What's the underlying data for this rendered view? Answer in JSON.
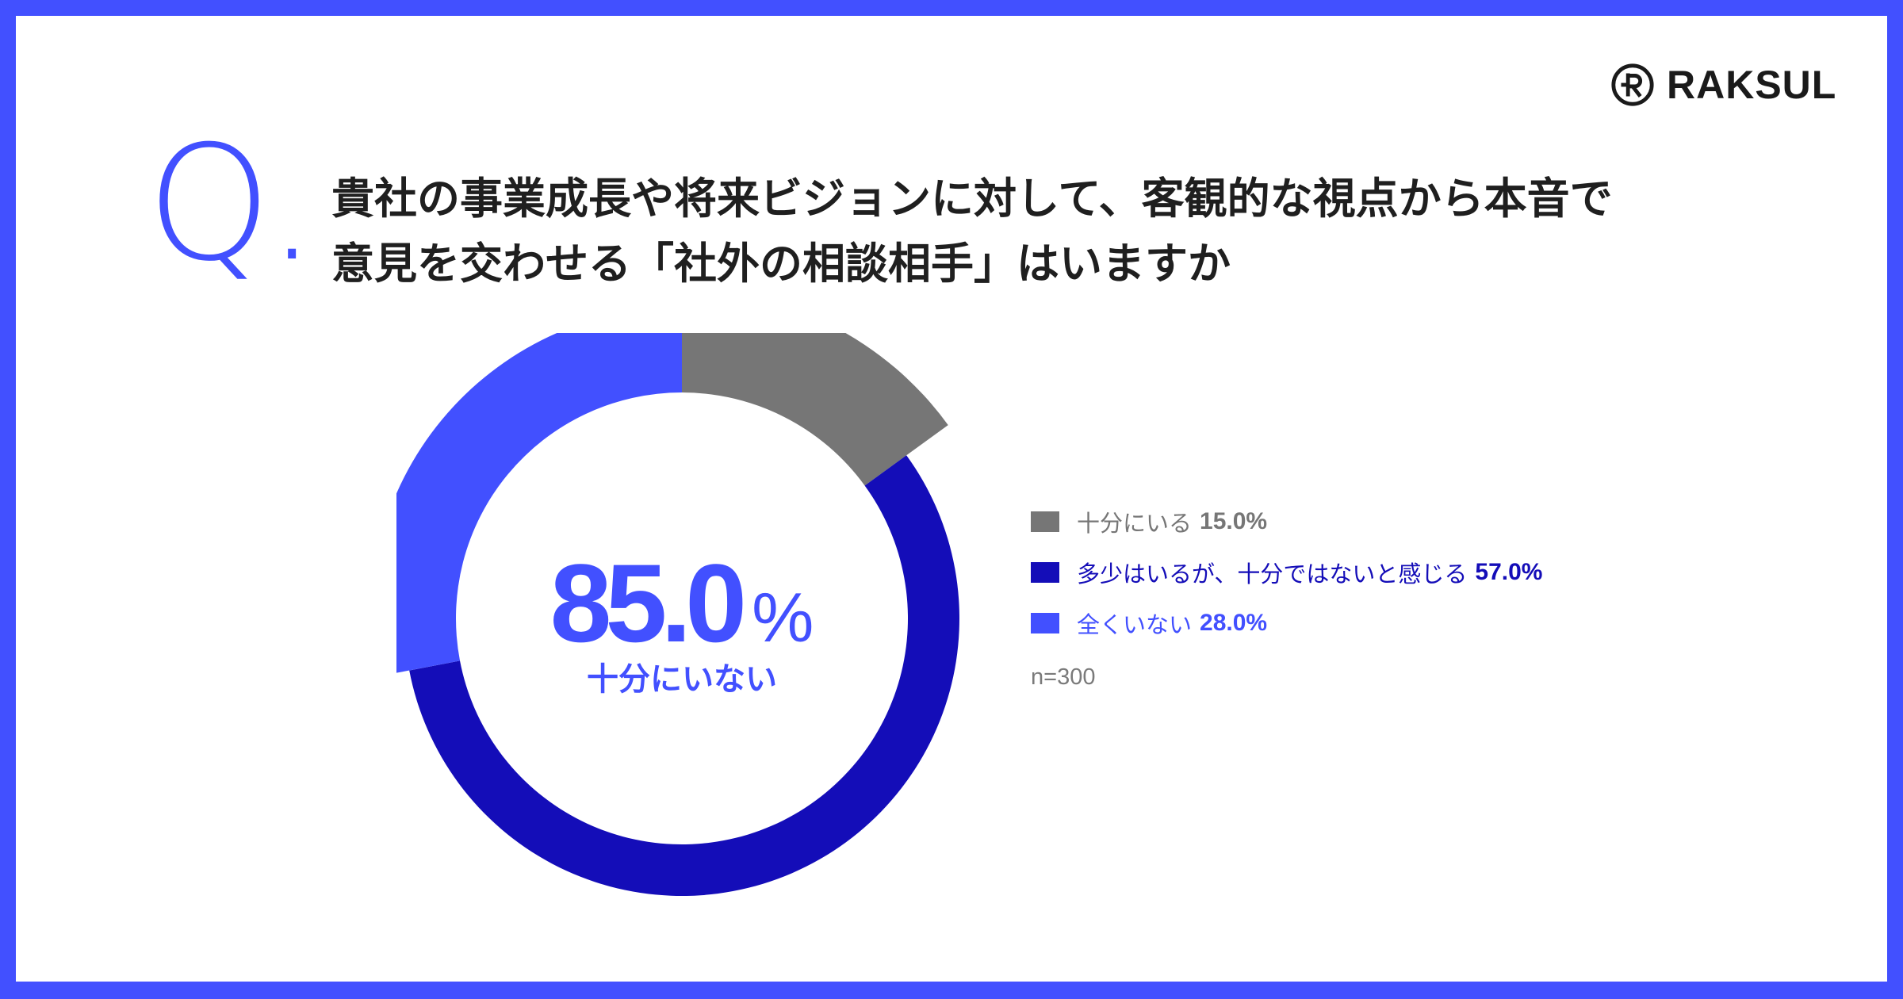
{
  "brand": {
    "name": "RAKSUL",
    "logo_icon": "raksul-r-circle-icon"
  },
  "question": {
    "mark": "Q.",
    "line1": "貴社の事業成長や将来ビジョンに対して、客観的な視点から本音で",
    "line2": "意見を交わせる「社外の相談相手」はいますか"
  },
  "center": {
    "value": "85.0",
    "unit": "%",
    "label": "十分にいない"
  },
  "legend": [
    {
      "label": "十分にいる",
      "value_text": "15.0%",
      "color": "#767676"
    },
    {
      "label": "多少はいるが、十分ではないと感じる",
      "value_text": "57.0%",
      "color": "#140DB8"
    },
    {
      "label": "全くいない",
      "value_text": "28.0%",
      "color": "#4250FF"
    }
  ],
  "sample_size": "n=300",
  "chart_data": {
    "type": "pie",
    "categories": [
      "十分にいる",
      "多少はいるが、十分ではないと感じる",
      "全くいない"
    ],
    "values": [
      15.0,
      57.0,
      28.0
    ],
    "colors": [
      "#767676",
      "#140DB8",
      "#4250FF"
    ],
    "unit": "%",
    "style": "donut",
    "legend_position": "right"
  }
}
